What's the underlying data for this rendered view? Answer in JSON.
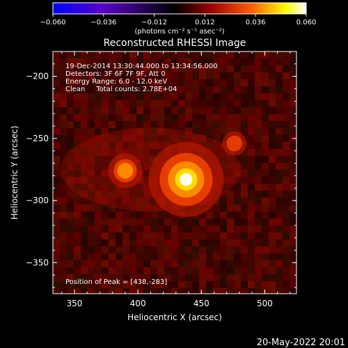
{
  "chart_data": {
    "type": "heatmap",
    "title": "Reconstructed RHESSI Image",
    "xlabel": "Heliocentric X (arcsec)",
    "ylabel": "Heliocentric Y (arcsec)",
    "xlim": [
      333,
      525
    ],
    "ylim": [
      -375,
      -180
    ],
    "x_ticks": [
      "350",
      "400",
      "450",
      "500"
    ],
    "x_tick_values": [
      350,
      400,
      450,
      500
    ],
    "y_ticks": [
      "−200",
      "−250",
      "−300",
      "−350"
    ],
    "y_tick_values": [
      -200,
      -250,
      -300,
      -350
    ],
    "colorbar": {
      "ticks": [
        "−0.060",
        "−0.036",
        "−0.012",
        "0.012",
        "0.036",
        "0.060"
      ],
      "range": [
        -0.06,
        0.06
      ],
      "unit_label": "(photons cm⁻² s⁻¹ asec⁻²)",
      "colormap": [
        "#0000ff",
        "#5a00c8",
        "#000000",
        "#960000",
        "#ff5a00",
        "#ffff00",
        "#ffffff"
      ]
    },
    "annotations": [
      "19-Dec-2014 13:30:44.000 to 13:34:56.000",
      "Detectors: 3F 6F 7F 9F, Att 0",
      "Energy Range: 6.0 - 12.0 keV",
      "Clean     Total counts: 2.78E+04"
    ],
    "peak_label": "Position of Peak = [438,-283]",
    "sources": [
      {
        "x": 438,
        "y": -283,
        "intensity": 0.06
      },
      {
        "x": 390,
        "y": -276,
        "intensity": 0.02
      },
      {
        "x": 476,
        "y": -254,
        "intensity": 0.01
      }
    ]
  },
  "footer_timestamp": "20-May-2022 20:01"
}
